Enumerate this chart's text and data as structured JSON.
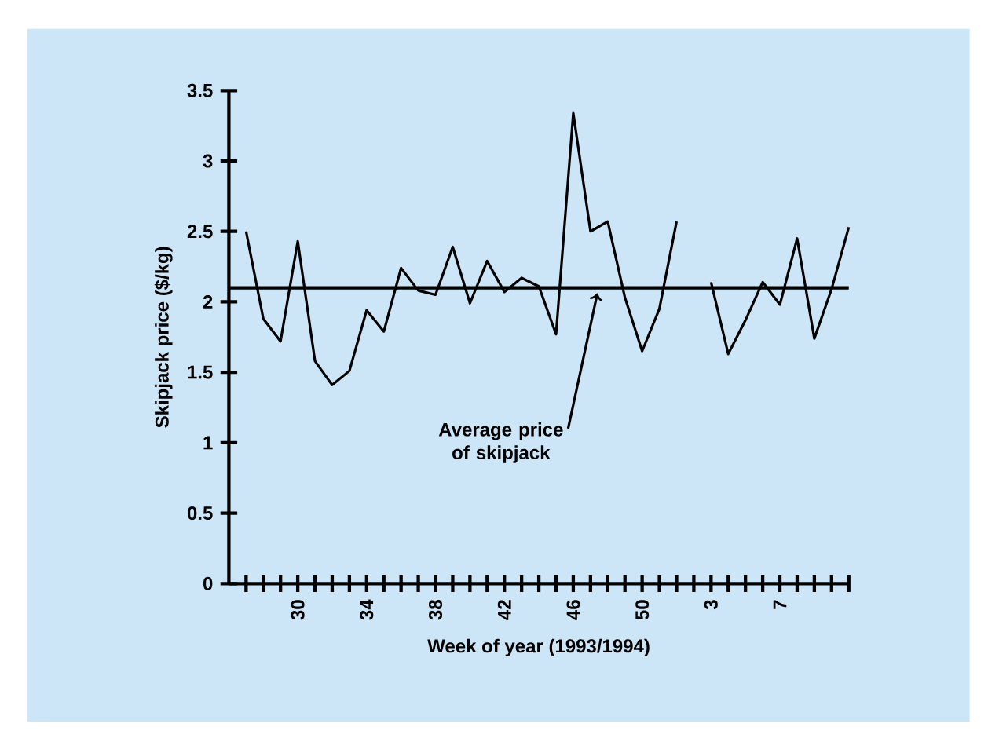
{
  "chart_data": {
    "type": "line",
    "xlabel": "Week of year (1993/1994)",
    "ylabel": "Skipjack price ($/kg)",
    "categories": [
      null,
      null,
      null,
      "30",
      null,
      null,
      null,
      "34",
      null,
      null,
      null,
      "38",
      null,
      null,
      null,
      "42",
      null,
      null,
      null,
      "46",
      null,
      null,
      null,
      "50",
      null,
      null,
      null,
      "3",
      null,
      null,
      null,
      "7",
      null,
      null,
      null,
      null
    ],
    "values": [
      2.5,
      1.88,
      1.72,
      2.43,
      1.58,
      1.41,
      1.51,
      1.94,
      1.79,
      2.24,
      2.08,
      2.05,
      2.39,
      1.99,
      2.29,
      2.07,
      2.17,
      2.11,
      1.77,
      3.34,
      2.5,
      2.57,
      2.03,
      1.65,
      1.95,
      2.57,
      null,
      2.14,
      1.63,
      1.87,
      2.14,
      1.98,
      2.45,
      1.74,
      2.09,
      2.53
    ],
    "color": "#000000",
    "line_style": "solid",
    "marker": "none",
    "ylim": [
      0,
      3.5
    ],
    "yticks": [
      0,
      0.5,
      1,
      1.5,
      2,
      2.5,
      3,
      3.5
    ],
    "ref_lines": [
      {
        "axis": "y",
        "value": 2.1,
        "label": "Average price of skipjack",
        "color": "#000000"
      }
    ]
  }
}
